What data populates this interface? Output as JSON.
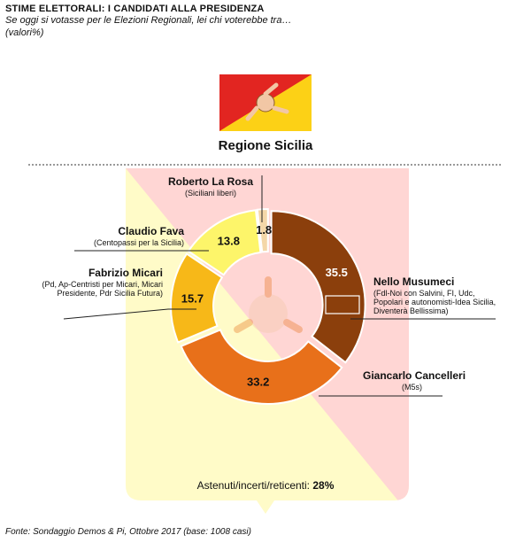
{
  "header": {
    "title": "STIME ELETTORALI: I CANDIDATI ALLA PRESIDENZA",
    "subtitle": "Se oggi si votasse per le Elezioni Regionali, lei chi voterebbe tra…",
    "unit": "(valori%)",
    "region": "Regione Sicilia"
  },
  "footer": {
    "source": "Fonte: Sondaggio Demos & Pi, Ottobre 2017 (base: 1008 casi)",
    "abstention_label": "Astenuti/incerti/reticenti:",
    "abstention_value": "28%"
  },
  "colors": {
    "musumeci": "#8B3F0C",
    "cancelleri": "#E8701A",
    "micari": "#F7B818",
    "fava": "#FDF56A",
    "larosa": "#F4D7A8",
    "flag_red": "#E22521",
    "flag_yellow": "#FCD116",
    "bg_yellow": "#FFFBC8",
    "bg_pink": "#FFD6D4"
  },
  "chart_data": {
    "type": "pie",
    "variant": "donut",
    "title": "Regione Sicilia",
    "series": [
      {
        "name": "Nello Musumeci",
        "party": "(Fdl-Noi con Salvini, FI, Udc, Popolari e autonomisti-Idea Sicilia, Diventerà Bellissima)",
        "value": 35.5,
        "label": "35.5",
        "color": "#8B3F0C"
      },
      {
        "name": "Giancarlo Cancelleri",
        "party": "(M5s)",
        "value": 33.2,
        "label": "33.2",
        "color": "#E8701A"
      },
      {
        "name": "Fabrizio Micari",
        "party": "(Pd, Ap-Centristi per Micari, Micari Presidente, Pdr Sicilia Futura)",
        "value": 15.7,
        "label": "15.7",
        "color": "#F7B818"
      },
      {
        "name": "Claudio Fava",
        "party": "(Centopassi per la Sicilia)",
        "value": 13.8,
        "label": "13.8",
        "color": "#FDF56A"
      },
      {
        "name": "Roberto La Rosa",
        "party": "(Siciliani liberi)",
        "value": 1.8,
        "label": "1.8",
        "color": "#F4D7A8"
      }
    ]
  }
}
